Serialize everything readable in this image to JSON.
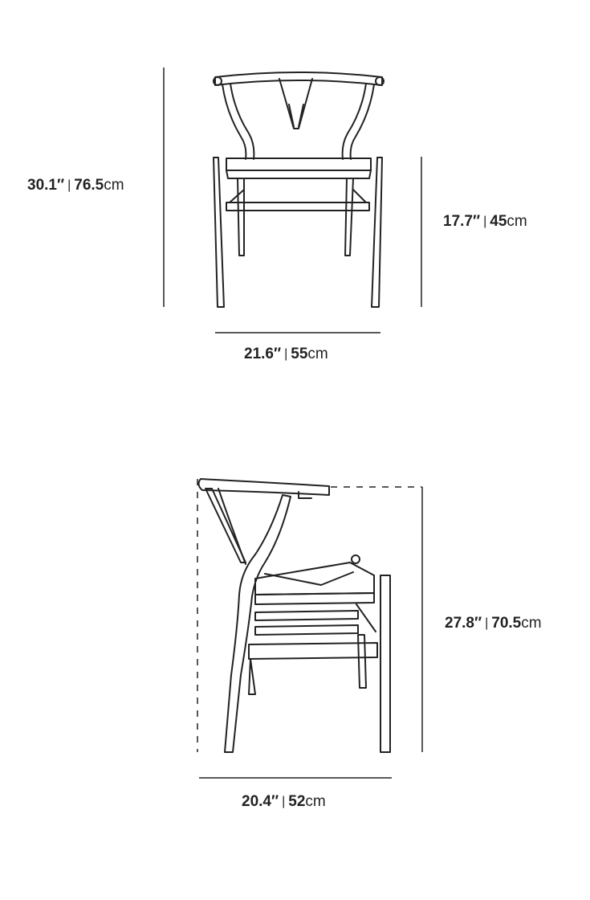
{
  "front_view": {
    "height": {
      "inches": "30.1″",
      "separator": "|",
      "cm_value": "76.5",
      "cm_unit": "cm"
    },
    "seat_height": {
      "inches": "17.7″",
      "separator": "|",
      "cm_value": "45",
      "cm_unit": "cm"
    },
    "width": {
      "inches": "21.6″",
      "separator": "|",
      "cm_value": "55",
      "cm_unit": "cm"
    }
  },
  "side_view": {
    "arm_height": {
      "inches": "27.8″",
      "separator": "|",
      "cm_value": "70.5",
      "cm_unit": "cm"
    },
    "depth": {
      "inches": "20.4″",
      "separator": "|",
      "cm_value": "52",
      "cm_unit": "cm"
    }
  },
  "colors": {
    "line": "#222222",
    "background": "#ffffff"
  }
}
